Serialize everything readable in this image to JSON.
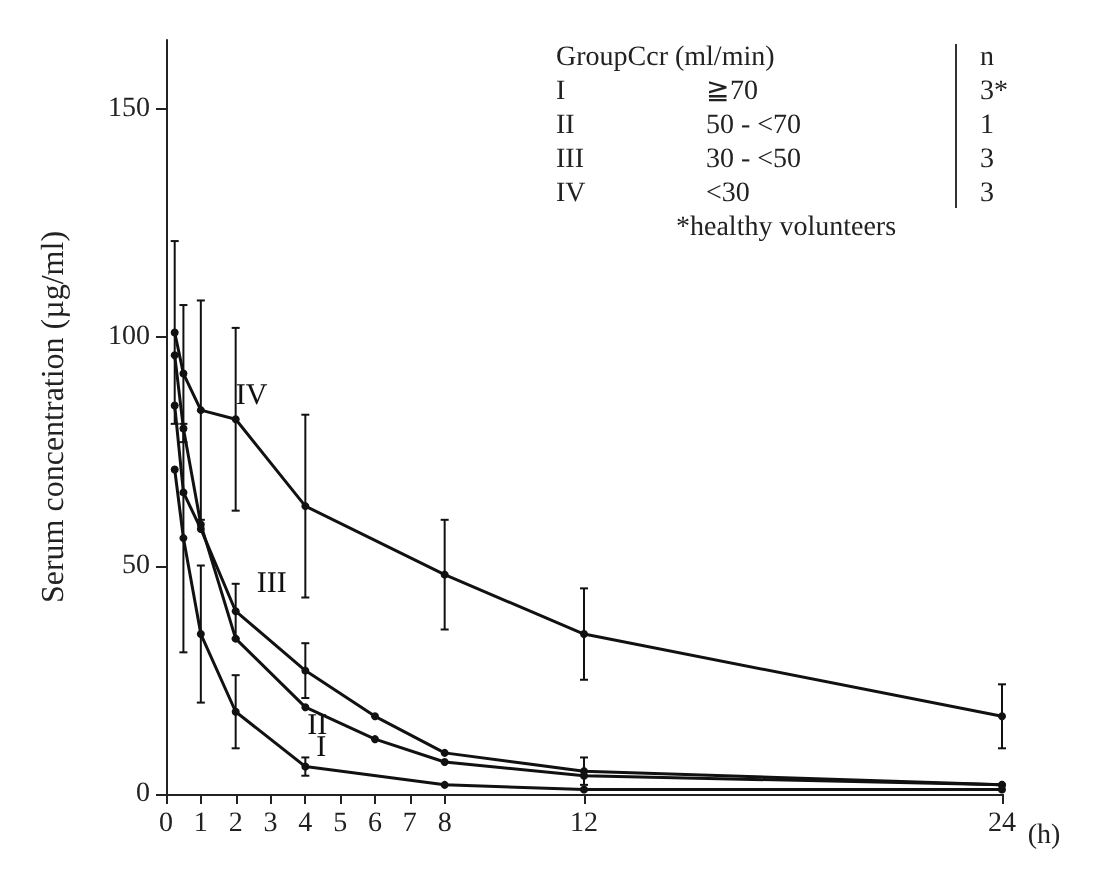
{
  "chart_data": {
    "type": "line",
    "ylabel": "Serum concentration (µg/ml)",
    "xlabel": "(h)",
    "x": [
      0.25,
      0.5,
      1,
      2,
      4,
      6,
      8,
      12,
      24
    ],
    "xlim": [
      0,
      24
    ],
    "xticks": [
      0,
      1,
      2,
      3,
      4,
      5,
      6,
      7,
      8,
      12,
      24
    ],
    "ylim": [
      0,
      165
    ],
    "yticks": [
      0,
      50,
      100,
      150
    ],
    "grid": false,
    "legend": false,
    "marker": "circle",
    "line_style": "solid",
    "series": [
      {
        "name": "IV",
        "color": "#111111",
        "values": [
          101,
          92,
          84,
          82,
          63,
          null,
          48,
          35,
          17
        ],
        "errors": [
          20,
          15,
          24,
          20,
          20,
          null,
          12,
          10,
          7
        ]
      },
      {
        "name": "III",
        "color": "#111111",
        "values": [
          85,
          66,
          58,
          40,
          27,
          17,
          9,
          5,
          2
        ],
        "errors": [
          null,
          null,
          null,
          6,
          6,
          null,
          null,
          3,
          null
        ]
      },
      {
        "name": "II",
        "color": "#111111",
        "values": [
          96,
          80,
          59,
          34,
          19,
          12,
          7,
          4,
          2
        ]
      },
      {
        "name": "I",
        "color": "#111111",
        "values": [
          71,
          56,
          35,
          18,
          6,
          null,
          2,
          1,
          1
        ],
        "errors": [
          null,
          25,
          15,
          8,
          2,
          null,
          null,
          null,
          null
        ]
      }
    ],
    "annotations": [
      "GroupCcr (ml/min)",
      "n",
      "I",
      "≧70",
      "3*",
      "II",
      "50 - <70",
      "1",
      "III",
      "30 - <50",
      "3",
      "IV",
      "<30",
      "3",
      "*healthy volunteers"
    ]
  }
}
